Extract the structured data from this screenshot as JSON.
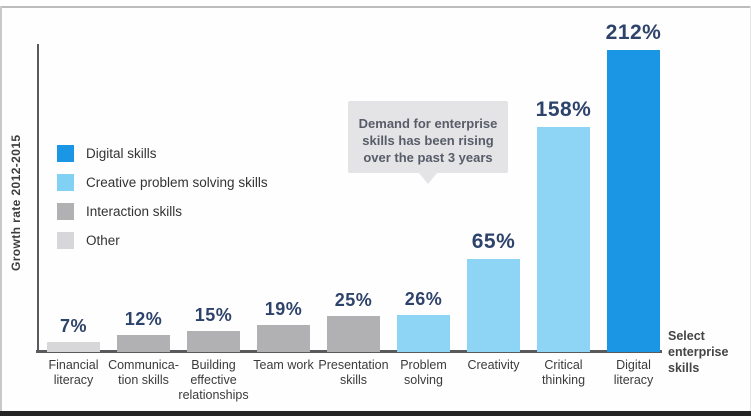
{
  "chart_data": {
    "type": "bar",
    "title": "",
    "xlabel": "",
    "ylabel": "Growth rate 2012-2015",
    "categories": [
      "Financial literacy",
      "Communication skills",
      "Building effective relationships",
      "Team work",
      "Presentation skills",
      "Problem solving",
      "Creativity",
      "Critical thinking",
      "Digital literacy"
    ],
    "category_lines": [
      "Financial\nliteracy",
      "Communica-\ntion skills",
      "Building\neffective\nrelationships",
      "Team work",
      "Presentation\nskills",
      "Problem\nsolving",
      "Creativity",
      "Critical\nthinking",
      "Digital\nliteracy"
    ],
    "values": [
      7,
      12,
      15,
      19,
      25,
      26,
      65,
      158,
      212
    ],
    "value_labels": [
      "7%",
      "12%",
      "15%",
      "19%",
      "25%",
      "26%",
      "65%",
      "158%",
      "212%"
    ],
    "groups": [
      "other",
      "interaction",
      "interaction",
      "interaction",
      "interaction",
      "creative",
      "creative",
      "creative",
      "digital"
    ],
    "group_colors": {
      "digital": "#1a96e4",
      "creative": "#8ed5f5",
      "interaction": "#b1b1b3",
      "other": "#d7d7d9"
    },
    "value_label_color": "#2e436b",
    "ylim": [
      0,
      212
    ],
    "grid": false,
    "legend_position": "left"
  },
  "legend": {
    "items": [
      {
        "label": "Digital skills",
        "color": "#1a96e4"
      },
      {
        "label": "Creative problem solving skills",
        "color": "#80d1f3"
      },
      {
        "label": "Interaction skills",
        "color": "#b1b1b3"
      },
      {
        "label": "Other",
        "color": "#d7d7d9"
      }
    ]
  },
  "annotation": {
    "text": "Demand for enterprise\nskills has been rising\nover the past 3 years"
  },
  "side_note": "Select\nenterprise\nskills"
}
